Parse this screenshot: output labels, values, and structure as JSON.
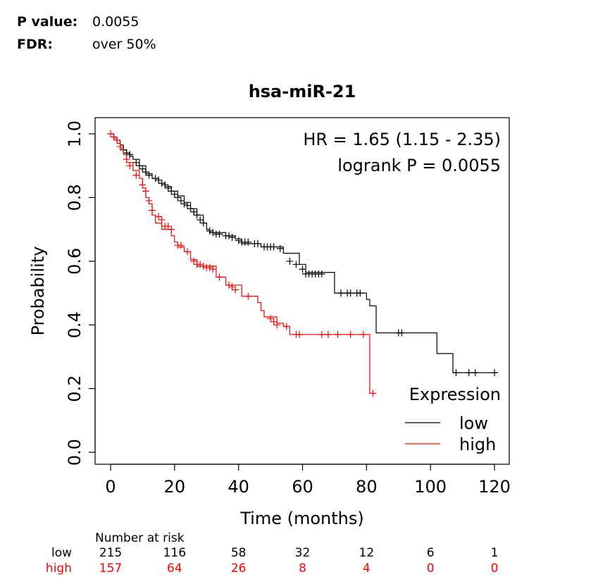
{
  "stats": {
    "p_label": "P value:",
    "p_value": "0.0055",
    "fdr_label": "FDR:",
    "fdr_value": "over 50%"
  },
  "chart_data": {
    "type": "line",
    "step": true,
    "title": "hsa-miR-21",
    "xlabel": "Time (months)",
    "ylabel": "Probability",
    "xlim": [
      0,
      120
    ],
    "ylim": [
      0,
      1
    ],
    "xticks": [
      "0",
      "20",
      "40",
      "60",
      "80",
      "100",
      "120"
    ],
    "yticks": [
      "0.0",
      "0.2",
      "0.4",
      "0.6",
      "0.8",
      "1.0"
    ],
    "annotations": [
      "HR = 1.65 (1.15 - 2.35)",
      "logrank P = 0.0055"
    ],
    "legend": {
      "title": "Expression",
      "position": "bottom-right"
    },
    "series": [
      {
        "name": "low",
        "color": "#000000",
        "points": [
          [
            0,
            1.0
          ],
          [
            1,
            0.99
          ],
          [
            2,
            0.98
          ],
          [
            3,
            0.965
          ],
          [
            4,
            0.95
          ],
          [
            5,
            0.94
          ],
          [
            6,
            0.93
          ],
          [
            7,
            0.92
          ],
          [
            9,
            0.9
          ],
          [
            11,
            0.875
          ],
          [
            13,
            0.86
          ],
          [
            15,
            0.845
          ],
          [
            17,
            0.835
          ],
          [
            19,
            0.82
          ],
          [
            21,
            0.805
          ],
          [
            23,
            0.785
          ],
          [
            25,
            0.765
          ],
          [
            27,
            0.745
          ],
          [
            29,
            0.72
          ],
          [
            30,
            0.7
          ],
          [
            31,
            0.69
          ],
          [
            36,
            0.68
          ],
          [
            39,
            0.67
          ],
          [
            41,
            0.655
          ],
          [
            47,
            0.645
          ],
          [
            54,
            0.625
          ],
          [
            59,
            0.59
          ],
          [
            61,
            0.565
          ],
          [
            70,
            0.5
          ],
          [
            80,
            0.48
          ],
          [
            81,
            0.46
          ],
          [
            83,
            0.375
          ],
          [
            102,
            0.31
          ],
          [
            107,
            0.25
          ],
          [
            121,
            0.25
          ]
        ],
        "censors": [
          [
            4,
            0.95
          ],
          [
            5,
            0.94
          ],
          [
            6,
            0.935
          ],
          [
            8,
            0.91
          ],
          [
            9,
            0.9
          ],
          [
            10,
            0.89
          ],
          [
            11,
            0.88
          ],
          [
            12,
            0.87
          ],
          [
            14,
            0.86
          ],
          [
            15,
            0.855
          ],
          [
            16,
            0.845
          ],
          [
            17,
            0.84
          ],
          [
            18,
            0.83
          ],
          [
            19,
            0.82
          ],
          [
            20,
            0.81
          ],
          [
            21,
            0.8
          ],
          [
            22,
            0.79
          ],
          [
            23,
            0.78
          ],
          [
            24,
            0.775
          ],
          [
            25,
            0.765
          ],
          [
            26,
            0.755
          ],
          [
            27,
            0.745
          ],
          [
            28,
            0.73
          ],
          [
            29,
            0.72
          ],
          [
            31,
            0.695
          ],
          [
            32,
            0.69
          ],
          [
            33,
            0.685
          ],
          [
            34,
            0.685
          ],
          [
            36,
            0.68
          ],
          [
            37,
            0.68
          ],
          [
            38,
            0.675
          ],
          [
            40,
            0.665
          ],
          [
            41,
            0.66
          ],
          [
            42,
            0.66
          ],
          [
            43,
            0.66
          ],
          [
            45,
            0.655
          ],
          [
            46,
            0.655
          ],
          [
            48,
            0.645
          ],
          [
            49,
            0.645
          ],
          [
            50,
            0.645
          ],
          [
            51,
            0.645
          ],
          [
            53,
            0.64
          ],
          [
            56,
            0.6
          ],
          [
            58,
            0.59
          ],
          [
            60,
            0.575
          ],
          [
            61,
            0.56
          ],
          [
            62,
            0.56
          ],
          [
            63,
            0.56
          ],
          [
            64,
            0.56
          ],
          [
            65,
            0.56
          ],
          [
            66,
            0.56
          ],
          [
            72,
            0.5
          ],
          [
            74,
            0.5
          ],
          [
            75,
            0.5
          ],
          [
            77,
            0.5
          ],
          [
            78,
            0.5
          ],
          [
            90,
            0.375
          ],
          [
            91,
            0.375
          ],
          [
            108,
            0.25
          ],
          [
            112,
            0.25
          ],
          [
            114,
            0.25
          ],
          [
            120,
            0.25
          ]
        ]
      },
      {
        "name": "high",
        "color": "#ff0000",
        "points": [
          [
            0,
            1.0
          ],
          [
            1,
            0.985
          ],
          [
            2,
            0.97
          ],
          [
            3,
            0.955
          ],
          [
            4,
            0.935
          ],
          [
            5,
            0.91
          ],
          [
            7,
            0.885
          ],
          [
            9,
            0.86
          ],
          [
            10,
            0.83
          ],
          [
            11,
            0.8
          ],
          [
            12,
            0.78
          ],
          [
            13,
            0.745
          ],
          [
            14,
            0.72
          ],
          [
            16,
            0.7
          ],
          [
            19,
            0.68
          ],
          [
            20,
            0.66
          ],
          [
            21,
            0.645
          ],
          [
            23,
            0.63
          ],
          [
            25,
            0.605
          ],
          [
            27,
            0.585
          ],
          [
            33,
            0.55
          ],
          [
            36,
            0.525
          ],
          [
            41,
            0.49
          ],
          [
            46,
            0.47
          ],
          [
            47,
            0.445
          ],
          [
            48,
            0.425
          ],
          [
            52,
            0.405
          ],
          [
            54,
            0.395
          ],
          [
            56,
            0.37
          ],
          [
            81,
            0.185
          ],
          [
            82,
            0.185
          ]
        ],
        "censors": [
          [
            0,
            1.0
          ],
          [
            1,
            0.99
          ],
          [
            2,
            0.98
          ],
          [
            3,
            0.96
          ],
          [
            5,
            0.92
          ],
          [
            6,
            0.9
          ],
          [
            8,
            0.87
          ],
          [
            10,
            0.84
          ],
          [
            11,
            0.82
          ],
          [
            12,
            0.79
          ],
          [
            13,
            0.76
          ],
          [
            15,
            0.74
          ],
          [
            16,
            0.73
          ],
          [
            17,
            0.71
          ],
          [
            18,
            0.71
          ],
          [
            19,
            0.7
          ],
          [
            21,
            0.65
          ],
          [
            22,
            0.65
          ],
          [
            24,
            0.63
          ],
          [
            26,
            0.6
          ],
          [
            27,
            0.59
          ],
          [
            28,
            0.59
          ],
          [
            29,
            0.585
          ],
          [
            30,
            0.58
          ],
          [
            31,
            0.58
          ],
          [
            32,
            0.575
          ],
          [
            34,
            0.55
          ],
          [
            37,
            0.525
          ],
          [
            38,
            0.52
          ],
          [
            39,
            0.51
          ],
          [
            43,
            0.49
          ],
          [
            50,
            0.42
          ],
          [
            51,
            0.41
          ],
          [
            52,
            0.4
          ],
          [
            55,
            0.395
          ],
          [
            58,
            0.37
          ],
          [
            59,
            0.37
          ],
          [
            66,
            0.37
          ],
          [
            68,
            0.37
          ],
          [
            71,
            0.37
          ],
          [
            75,
            0.37
          ],
          [
            79,
            0.37
          ],
          [
            82,
            0.185
          ]
        ]
      }
    ]
  },
  "risk_table": {
    "title": "Number at risk",
    "rows": [
      {
        "name": "low",
        "color": "#000000",
        "values": [
          "215",
          "116",
          "58",
          "32",
          "12",
          "6",
          "1"
        ]
      },
      {
        "name": "high",
        "color": "#ff0000",
        "values": [
          "157",
          "64",
          "26",
          "8",
          "4",
          "0",
          "0"
        ]
      }
    ]
  }
}
